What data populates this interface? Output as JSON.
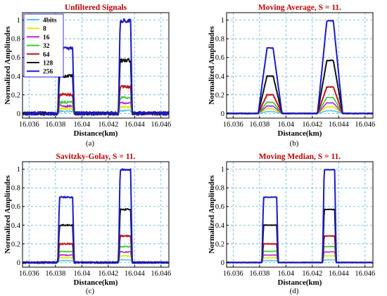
{
  "figure_labels": [
    "(a)",
    "(b)",
    "(c)",
    "(d)"
  ],
  "colors": {
    "grid": "#5bb1d6",
    "title": "#c00000",
    "axis": "#000000",
    "legend_frame": "#0000cc"
  },
  "chart_data": [
    {
      "type": "line",
      "title": "Unfiltered Signals",
      "xlabel": "Distance(km)",
      "ylabel": "Normalized Amplitudes",
      "xlim": [
        16.0355,
        16.0466
      ],
      "ylim": [
        -0.05,
        1.08
      ],
      "xticks": [
        16.036,
        16.038,
        16.04,
        16.042,
        16.044,
        16.046
      ],
      "xtick_labels": [
        "16.036",
        "16.038",
        "16.04",
        "16.042",
        "16.044",
        "16.046"
      ],
      "yticks": [
        0,
        0.2,
        0.4,
        0.6,
        0.8,
        1
      ],
      "ytick_labels": [
        "0",
        "0.2",
        "0.4",
        "0.6",
        "0.8",
        "1"
      ],
      "grid": true,
      "legend": "top-left",
      "series": [
        {
          "name": "4bits",
          "color": "#4fc8e8",
          "amp": 0.02
        },
        {
          "name": "8",
          "color": "#e6e600",
          "amp": 0.05
        },
        {
          "name": "16",
          "color": "#b028d8",
          "amp": 0.08
        },
        {
          "name": "32",
          "color": "#33cc33",
          "amp": 0.12
        },
        {
          "name": "64",
          "color": "#c01515",
          "amp": 0.2
        },
        {
          "name": "128",
          "color": "#111111",
          "amp": 0.4
        },
        {
          "name": "256",
          "color": "#1a1acc",
          "amp": 0.7
        }
      ],
      "pulses": [
        {
          "start": 16.0383,
          "end": 16.0393,
          "scale": 1.0
        },
        {
          "start": 16.0429,
          "end": 16.0437,
          "scale": 1.42
        }
      ],
      "noise": 0.02
    },
    {
      "type": "line",
      "title": "Moving Average, S = 11.",
      "xlabel": "Distance(km)",
      "ylabel": "Normalized Amplitudes",
      "xlim": [
        16.0355,
        16.0466
      ],
      "ylim": [
        -0.05,
        1.08
      ],
      "xticks": [
        16.036,
        16.038,
        16.04,
        16.042,
        16.044,
        16.046
      ],
      "xtick_labels": [
        "16.036",
        "16.038",
        "16.04",
        "16.042",
        "16.044",
        "16.046"
      ],
      "yticks": [
        0,
        0.2,
        0.4,
        0.6,
        0.8,
        1
      ],
      "ytick_labels": [
        "0",
        "0.2",
        "0.4",
        "0.6",
        "0.8",
        "1"
      ],
      "grid": true,
      "series": [
        {
          "color": "#4fc8e8",
          "amp": 0.02
        },
        {
          "color": "#e6e600",
          "amp": 0.05
        },
        {
          "color": "#b028d8",
          "amp": 0.08
        },
        {
          "color": "#33cc33",
          "amp": 0.12
        },
        {
          "color": "#c01515",
          "amp": 0.2
        },
        {
          "color": "#111111",
          "amp": 0.4
        },
        {
          "color": "#1a1acc",
          "amp": 0.7
        }
      ],
      "pulses": [
        {
          "start": 16.0384,
          "end": 16.0392,
          "scale": 1.0,
          "shape": "tri"
        },
        {
          "start": 16.0429,
          "end": 16.0438,
          "scale": 1.42,
          "shape": "tri"
        }
      ],
      "noise": 0.004
    },
    {
      "type": "line",
      "title": "Savitzky-Golay, S = 11.",
      "xlabel": "Distance(km)",
      "ylabel": "Normalized Amplitudes",
      "xlim": [
        16.0355,
        16.0466
      ],
      "ylim": [
        -0.05,
        1.08
      ],
      "xticks": [
        16.036,
        16.038,
        16.04,
        16.042,
        16.044,
        16.046
      ],
      "xtick_labels": [
        "16.036",
        "16.038",
        "16.04",
        "16.042",
        "16.044",
        "16.046"
      ],
      "yticks": [
        0,
        0.2,
        0.4,
        0.6,
        0.8,
        1
      ],
      "ytick_labels": [
        "0",
        "0.2",
        "0.4",
        "0.6",
        "0.8",
        "1"
      ],
      "grid": true,
      "series": [
        {
          "color": "#4fc8e8",
          "amp": 0.02
        },
        {
          "color": "#e6e600",
          "amp": 0.05
        },
        {
          "color": "#b028d8",
          "amp": 0.08
        },
        {
          "color": "#33cc33",
          "amp": 0.12
        },
        {
          "color": "#c01515",
          "amp": 0.2
        },
        {
          "color": "#111111",
          "amp": 0.4
        },
        {
          "color": "#1a1acc",
          "amp": 0.7
        }
      ],
      "pulses": [
        {
          "start": 16.0383,
          "end": 16.0393,
          "scale": 1.0
        },
        {
          "start": 16.0429,
          "end": 16.0437,
          "scale": 1.42
        }
      ],
      "noise": 0.009
    },
    {
      "type": "line",
      "title": "Moving Median, S = 11.",
      "xlabel": "Distance(km)",
      "ylabel": "Normalized Amplitudes",
      "xlim": [
        16.0355,
        16.0466
      ],
      "ylim": [
        -0.05,
        1.08
      ],
      "xticks": [
        16.036,
        16.038,
        16.04,
        16.042,
        16.044,
        16.046
      ],
      "xtick_labels": [
        "16.036",
        "16.038",
        "16.04",
        "16.042",
        "16.044",
        "16.046"
      ],
      "yticks": [
        0,
        0.2,
        0.4,
        0.6,
        0.8,
        1
      ],
      "ytick_labels": [
        "0",
        "0.2",
        "0.4",
        "0.6",
        "0.8",
        "1"
      ],
      "grid": true,
      "series": [
        {
          "color": "#4fc8e8",
          "amp": 0.02
        },
        {
          "color": "#e6e600",
          "amp": 0.05
        },
        {
          "color": "#b028d8",
          "amp": 0.08
        },
        {
          "color": "#33cc33",
          "amp": 0.12
        },
        {
          "color": "#c01515",
          "amp": 0.2
        },
        {
          "color": "#111111",
          "amp": 0.4
        },
        {
          "color": "#1a1acc",
          "amp": 0.7
        }
      ],
      "pulses": [
        {
          "start": 16.0383,
          "end": 16.0393,
          "scale": 1.0
        },
        {
          "start": 16.0429,
          "end": 16.0437,
          "scale": 1.42
        }
      ],
      "noise": 0.003
    }
  ]
}
